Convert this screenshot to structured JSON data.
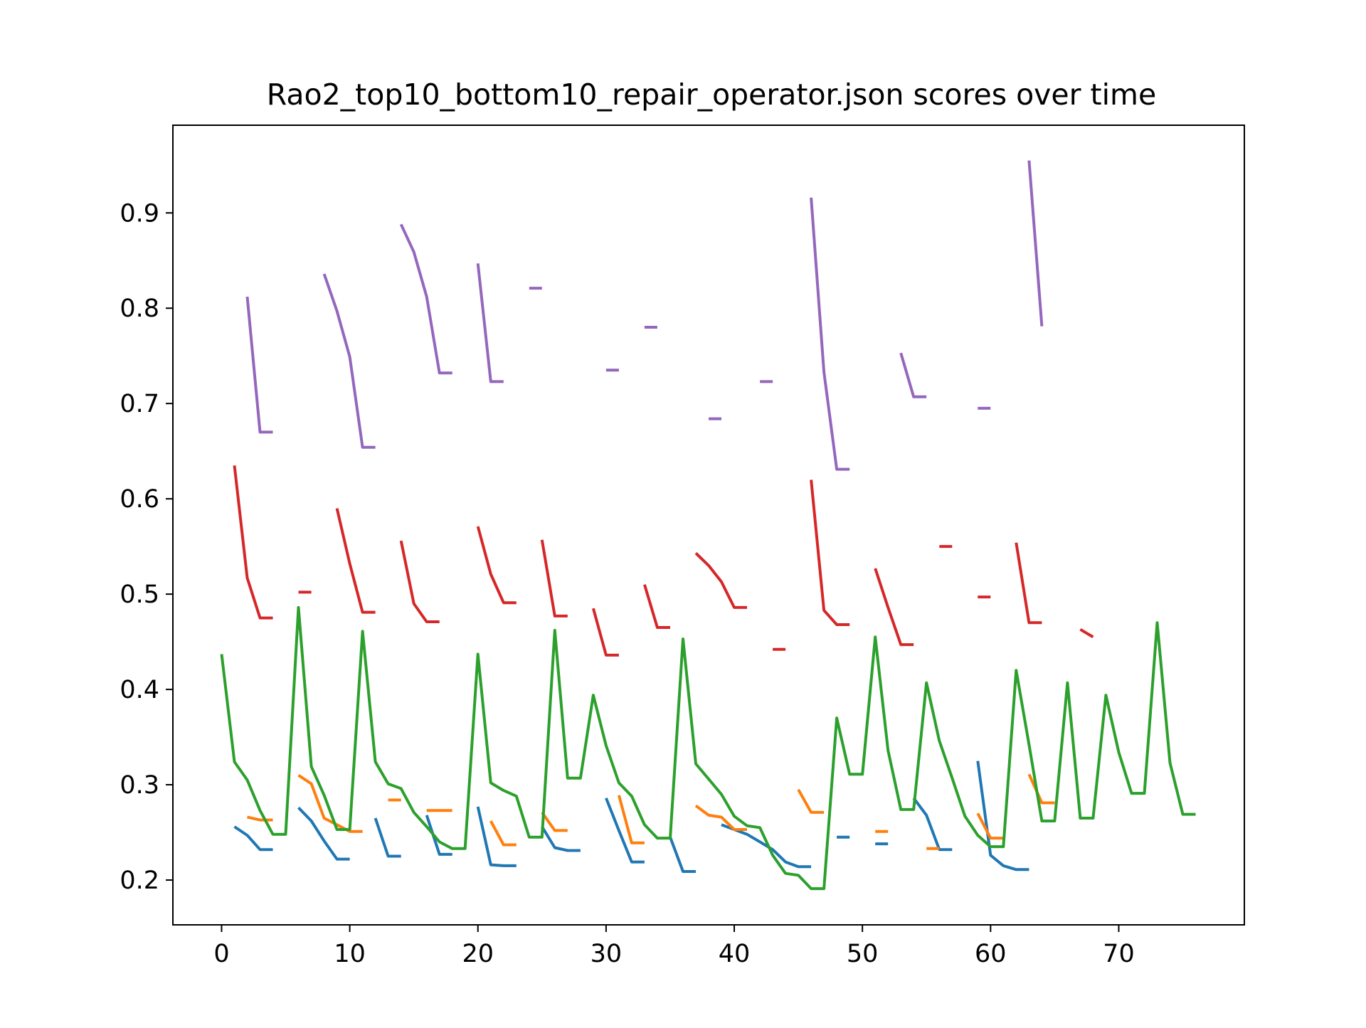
{
  "chart_data": {
    "type": "line",
    "title": "Rao2_top10_bottom10_repair_operator.json scores over time",
    "xlabel": "",
    "ylabel": "",
    "xlim": [
      -3.8,
      79.8
    ],
    "ylim": [
      0.153,
      0.992
    ],
    "xticks": [
      0,
      10,
      20,
      30,
      40,
      50,
      60,
      70
    ],
    "yticks": [
      0.2,
      0.3,
      0.4,
      0.5,
      0.6,
      0.7,
      0.8,
      0.9
    ],
    "ytick_labels": [
      "0.2",
      "0.3",
      "0.4",
      "0.5",
      "0.6",
      "0.7",
      "0.8",
      "0.9"
    ],
    "grid": false,
    "legend": "none",
    "series": [
      {
        "color": "#1f77b4",
        "values": [
          null,
          0.256,
          0.247,
          0.232,
          0.232,
          null,
          0.276,
          0.262,
          0.241,
          0.222,
          0.222,
          null,
          0.265,
          0.225,
          0.225,
          null,
          0.268,
          0.227,
          0.227,
          null,
          0.277,
          0.216,
          0.215,
          0.215,
          null,
          0.256,
          0.234,
          0.231,
          0.231,
          null,
          0.286,
          0.252,
          0.219,
          0.219,
          null,
          0.245,
          0.209,
          0.209,
          null,
          0.258,
          0.253,
          0.248,
          0.24,
          0.232,
          0.219,
          0.214,
          0.214,
          null,
          0.245,
          0.245,
          null,
          0.238,
          0.238,
          null,
          0.286,
          0.268,
          0.232,
          0.232,
          null,
          0.325,
          0.226,
          0.215,
          0.211,
          0.211,
          null,
          null,
          null,
          null,
          null,
          null,
          null,
          null,
          null,
          null,
          null,
          null,
          null
        ]
      },
      {
        "color": "#ff7f0e",
        "values": [
          null,
          null,
          0.266,
          0.263,
          0.263,
          null,
          0.31,
          0.301,
          0.265,
          0.258,
          0.251,
          0.251,
          null,
          0.284,
          0.284,
          null,
          0.273,
          0.273,
          0.273,
          null,
          null,
          0.262,
          0.237,
          0.237,
          null,
          0.271,
          0.252,
          0.252,
          null,
          null,
          null,
          0.289,
          0.239,
          0.239,
          null,
          null,
          null,
          0.278,
          0.268,
          0.266,
          0.253,
          0.253,
          null,
          null,
          null,
          0.295,
          0.271,
          0.271,
          null,
          null,
          null,
          0.251,
          0.251,
          null,
          null,
          0.233,
          0.233,
          null,
          null,
          0.27,
          0.244,
          0.244,
          null,
          0.311,
          0.281,
          0.281,
          null,
          null,
          null,
          null,
          null,
          null,
          null,
          null,
          null,
          null,
          null
        ]
      },
      {
        "color": "#2ca02c",
        "values": [
          0.437,
          0.324,
          0.305,
          0.273,
          0.248,
          0.248,
          0.486,
          0.319,
          0.289,
          0.253,
          0.253,
          0.461,
          0.324,
          0.301,
          0.296,
          0.271,
          0.256,
          0.24,
          0.233,
          0.233,
          0.437,
          0.302,
          0.294,
          0.288,
          0.245,
          0.245,
          0.462,
          0.307,
          0.307,
          0.394,
          0.341,
          0.302,
          0.288,
          0.258,
          0.244,
          0.244,
          0.453,
          0.322,
          0.306,
          0.29,
          0.267,
          0.257,
          0.255,
          0.226,
          0.207,
          0.205,
          0.191,
          0.191,
          0.37,
          0.311,
          0.311,
          0.455,
          0.336,
          0.274,
          0.274,
          0.407,
          0.346,
          0.307,
          0.267,
          0.247,
          0.235,
          0.235,
          0.42,
          0.342,
          0.262,
          0.262,
          0.407,
          0.265,
          0.265,
          0.394,
          0.334,
          0.291,
          0.291,
          0.47,
          0.323,
          0.269,
          0.269
        ]
      },
      {
        "color": "#d62728",
        "values": [
          null,
          0.635,
          0.517,
          0.475,
          0.475,
          null,
          0.502,
          0.502,
          null,
          0.59,
          0.532,
          0.481,
          0.481,
          null,
          0.556,
          0.49,
          0.471,
          0.471,
          null,
          null,
          0.571,
          0.521,
          0.491,
          0.491,
          null,
          0.557,
          0.477,
          0.477,
          null,
          0.485,
          0.436,
          0.436,
          null,
          0.51,
          0.465,
          0.465,
          null,
          0.543,
          0.53,
          0.513,
          0.486,
          0.486,
          null,
          0.442,
          0.442,
          null,
          0.62,
          0.483,
          0.468,
          0.468,
          null,
          0.527,
          0.486,
          0.447,
          0.447,
          null,
          0.55,
          0.55,
          null,
          0.497,
          0.497,
          null,
          0.554,
          0.47,
          0.47,
          null,
          null,
          0.463,
          0.455,
          null,
          null,
          null,
          null,
          null,
          null,
          null,
          null
        ]
      },
      {
        "color": "#9467bd",
        "values": [
          null,
          null,
          0.812,
          0.67,
          0.67,
          null,
          null,
          null,
          0.836,
          0.797,
          0.749,
          0.654,
          0.654,
          null,
          0.888,
          0.859,
          0.812,
          0.732,
          0.732,
          null,
          0.847,
          0.723,
          0.723,
          null,
          0.821,
          0.821,
          null,
          null,
          null,
          null,
          0.735,
          0.735,
          null,
          0.78,
          0.78,
          null,
          null,
          null,
          0.684,
          0.684,
          null,
          null,
          0.723,
          0.723,
          null,
          null,
          0.916,
          0.733,
          0.631,
          0.631,
          null,
          null,
          null,
          0.753,
          0.707,
          0.707,
          null,
          null,
          null,
          0.695,
          0.695,
          null,
          null,
          0.955,
          0.781,
          null,
          null,
          null,
          null,
          null,
          null,
          null,
          null,
          null,
          null,
          null,
          null
        ]
      }
    ]
  }
}
